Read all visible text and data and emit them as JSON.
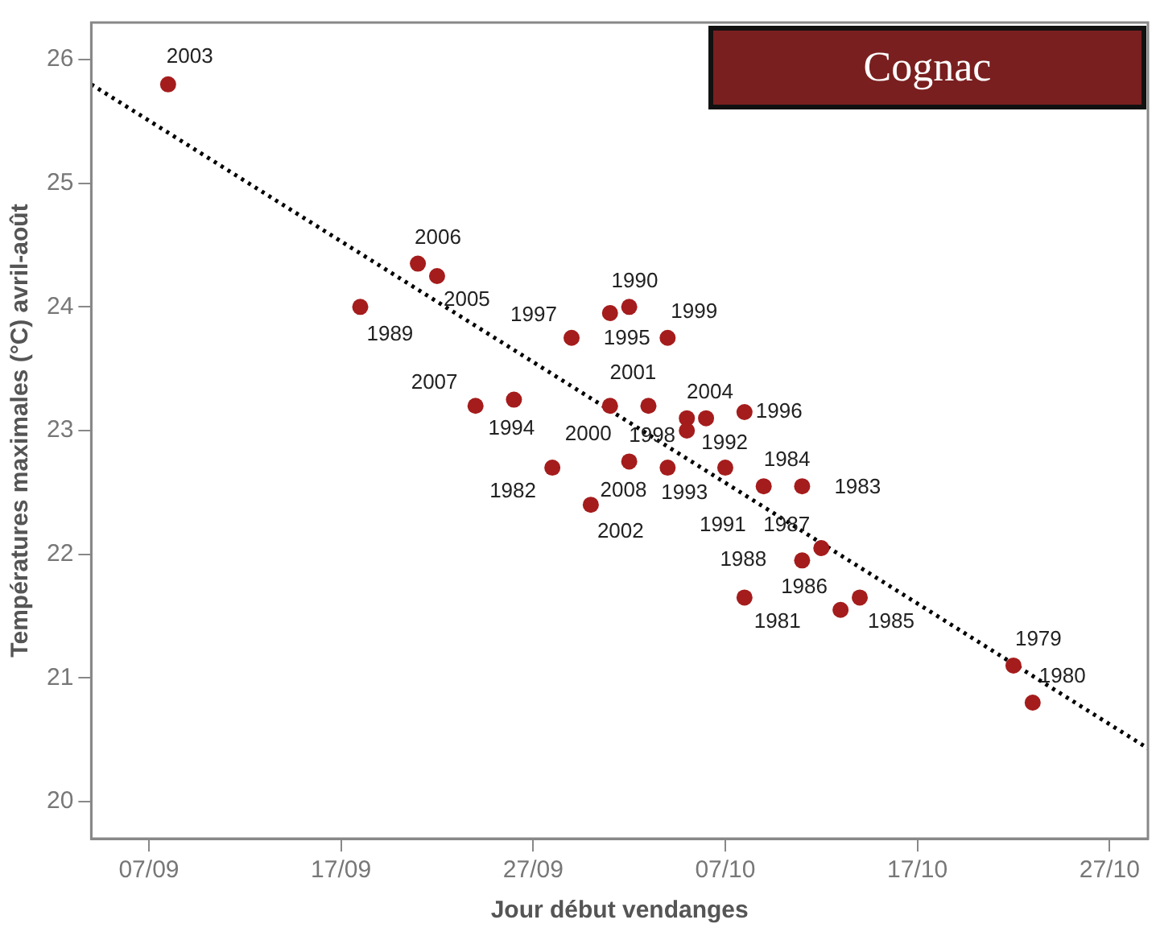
{
  "chart_data": {
    "type": "scatter",
    "title": "Cognac",
    "xlabel": "Jour début vendanges",
    "ylabel": "Températures maximales (°C) avril-août",
    "xlim": [
      "--09-04",
      "--10-29"
    ],
    "xticks": [
      {
        "value": "--09-07",
        "label": "07/09"
      },
      {
        "value": "--09-17",
        "label": "17/09"
      },
      {
        "value": "--09-27",
        "label": "27/09"
      },
      {
        "value": "--10-07",
        "label": "07/10"
      },
      {
        "value": "--10-17",
        "label": "17/10"
      },
      {
        "value": "--10-27",
        "label": "27/10"
      }
    ],
    "ylim": [
      19.7,
      26.3
    ],
    "yticks": [
      20,
      21,
      22,
      23,
      24,
      25,
      26
    ],
    "grid": false,
    "legend": false,
    "marker": "circle",
    "series": [
      {
        "color": "#a51c1c",
        "x": [
          "--09-08",
          "--09-18",
          "--09-21",
          "--09-22",
          "--09-29",
          "--10-01",
          "--10-02",
          "--10-04",
          "--09-24",
          "--09-26",
          "--10-01",
          "--10-03",
          "--10-05",
          "--10-05",
          "--10-06",
          "--10-08",
          "--09-28",
          "--10-02",
          "--10-04",
          "--09-30",
          "--10-07",
          "--10-09",
          "--10-11",
          "--10-12",
          "--10-11",
          "--10-08",
          "--10-13",
          "--10-14",
          "--10-22",
          "--10-23"
        ],
        "values": [
          25.8,
          24.0,
          24.35,
          24.25,
          23.75,
          23.95,
          24.0,
          23.75,
          23.2,
          23.25,
          23.2,
          23.2,
          23.1,
          23.0,
          23.1,
          23.15,
          22.7,
          22.75,
          22.7,
          22.4,
          22.7,
          22.55,
          22.55,
          22.05,
          21.95,
          21.65,
          21.55,
          21.65,
          21.1,
          20.8
        ]
      },
      {
        "type": "line",
        "color": "#000000",
        "line_style": "dotted",
        "marker": "none",
        "x": [
          "--09-04",
          "--10-29"
        ],
        "values": [
          25.8,
          20.43
        ]
      }
    ],
    "annotations": [
      {
        "text": "2003",
        "x": "--09-08",
        "y": 25.8
      },
      {
        "text": "1989",
        "x": "--09-18",
        "y": 24.0
      },
      {
        "text": "2006",
        "x": "--09-21",
        "y": 24.35
      },
      {
        "text": "2005",
        "x": "--09-22",
        "y": 24.25
      },
      {
        "text": "1997",
        "x": "--09-29",
        "y": 23.75
      },
      {
        "text": "1995",
        "x": "--10-01",
        "y": 23.95
      },
      {
        "text": "1990",
        "x": "--10-02",
        "y": 24.0
      },
      {
        "text": "1999",
        "x": "--10-04",
        "y": 23.75
      },
      {
        "text": "2007",
        "x": "--09-24",
        "y": 23.2
      },
      {
        "text": "1994",
        "x": "--09-26",
        "y": 23.25
      },
      {
        "text": "2000",
        "x": "--10-01",
        "y": 23.2
      },
      {
        "text": "2001",
        "x": "--10-03",
        "y": 23.2
      },
      {
        "text": "1998",
        "x": "--10-05",
        "y": 23.1
      },
      {
        "text": "1992",
        "x": "--10-05",
        "y": 23.0
      },
      {
        "text": "2004",
        "x": "--10-06",
        "y": 23.1
      },
      {
        "text": "1996",
        "x": "--10-08",
        "y": 23.15
      },
      {
        "text": "1982",
        "x": "--09-28",
        "y": 22.7
      },
      {
        "text": "2008",
        "x": "--10-02",
        "y": 22.75
      },
      {
        "text": "1993",
        "x": "--10-04",
        "y": 22.7
      },
      {
        "text": "2002",
        "x": "--09-30",
        "y": 22.4
      },
      {
        "text": "1991",
        "x": "--10-07",
        "y": 22.7
      },
      {
        "text": "1984",
        "x": "--10-09",
        "y": 22.55
      },
      {
        "text": "1983",
        "x": "--10-11",
        "y": 22.55
      },
      {
        "text": "1987",
        "x": "--10-12",
        "y": 22.05
      },
      {
        "text": "1988",
        "x": "--10-11",
        "y": 21.95
      },
      {
        "text": "1981",
        "x": "--10-08",
        "y": 21.65
      },
      {
        "text": "1986",
        "x": "--10-13",
        "y": 21.55
      },
      {
        "text": "1985",
        "x": "--10-14",
        "y": 21.65
      },
      {
        "text": "1979",
        "x": "--10-22",
        "y": 21.1
      },
      {
        "text": "1980",
        "x": "--10-23",
        "y": 20.8
      }
    ]
  }
}
